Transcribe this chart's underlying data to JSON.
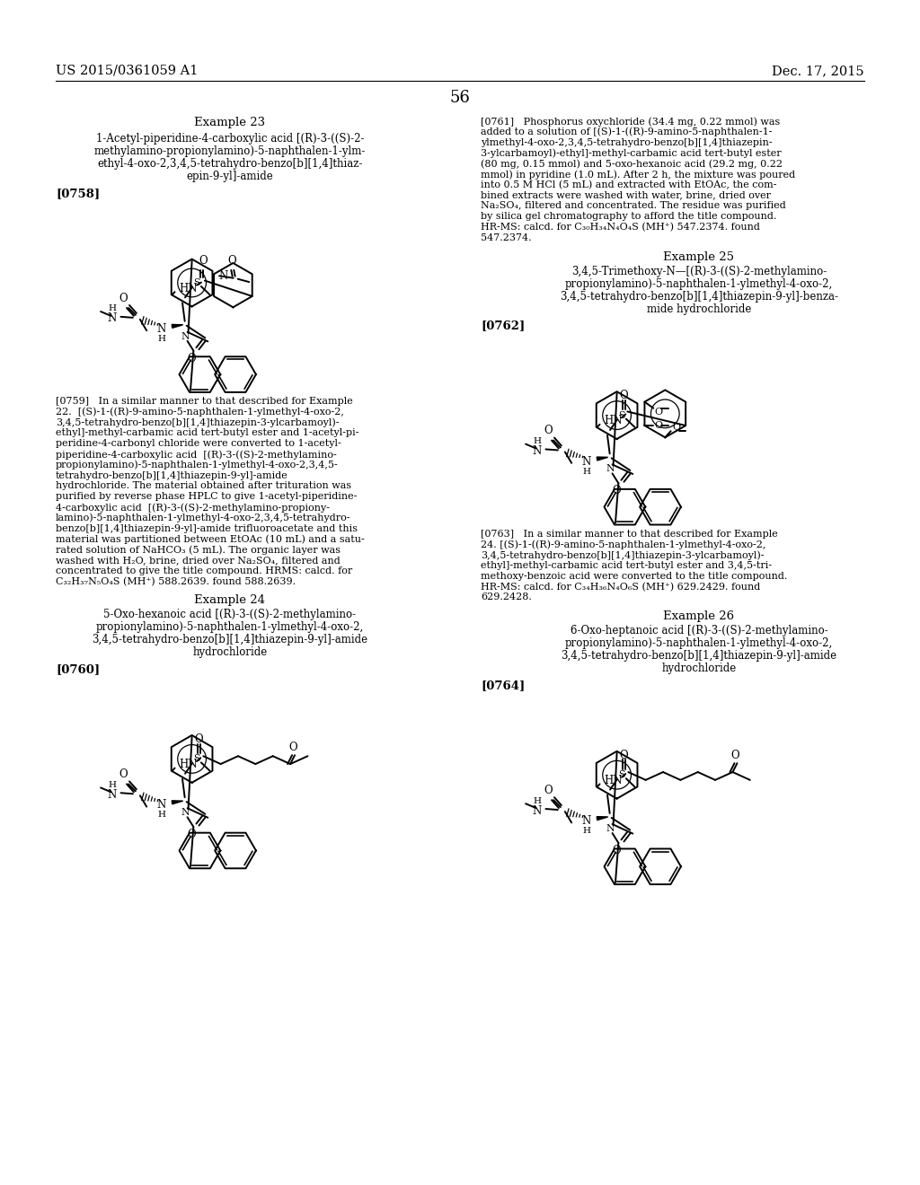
{
  "page_number": "56",
  "patent_number": "US 2015/0361059 A1",
  "patent_date": "Dec. 17, 2015",
  "background_color": "#ffffff",
  "text_color": "#000000",
  "font_size_header": 10.5,
  "font_size_body": 8.5,
  "font_size_title": 9.5,
  "font_size_label": 9.5,
  "example23_title": "Example 23",
  "example23_subtitle": "1-Acetyl-piperidine-4-carboxylic acid [(R)-3-((S)-2-\nmethylamino-propionylamino)-5-naphthalen-1-ylm-\nethyl-4-oxo-2,3,4,5-tetrahydro-benzo[b][1,4]thiaz-\nepin-9-yl]-amide",
  "example23_label": "[0758]",
  "example23_para": "[0759]   In a similar manner to that described for Example\n22.  [(S)-1-((R)-9-amino-5-naphthalen-1-ylmethyl-4-oxo-2,\n3,4,5-tetrahydro-benzo[b][1,4]thiazepin-3-ylcarbamoyl)-\nethyl]-methyl-carbamic acid tert-butyl ester and 1-acetyl-pi-\nperidine-4-carbonyl chloride were converted to 1-acetyl-\npiperidine-4-carboxylic acid  [(R)-3-((S)-2-methylamino-\npropionylamino)-5-naphthalen-1-ylmethyl-4-oxo-2,3,4,5-\ntetrahydro-benzo[b][1,4]thiazepin-9-yl]-amide\nhydrochloride. The material obtained after trituration was\npurified by reverse phase HPLC to give 1-acetyl-piperidine-\n4-carboxylic acid  [(R)-3-((S)-2-methylamino-propiony-\nlamino)-5-naphthalen-1-ylmethyl-4-oxo-2,3,4,5-tetrahydro-\nbenzo[b][1,4]thiazepin-9-yl]-amide trifluoroacetate and this\nmaterial was partitioned between EtOAc (10 mL) and a satu-\nrated solution of NaHCO₃ (5 mL). The organic layer was\nwashed with H₂O, brine, dried over Na₂SO₄, filtered and\nconcentrated to give the title compound. HRMS: calcd. for\nC₃₂H₃₇N₅O₄S (MH⁺) 588.2639. found 588.2639.",
  "example24_title": "Example 24",
  "example24_subtitle": "5-Oxo-hexanoic acid [(R)-3-((S)-2-methylamino-\npropionylamino)-5-naphthalen-1-ylmethyl-4-oxo-2,\n3,4,5-tetrahydro-benzo[b][1,4]thiazepin-9-yl]-amide\nhydrochloride",
  "example24_label": "[0760]",
  "example25_title": "Example 25",
  "example25_subtitle": "3,4,5-Trimethoxy-N—[(R)-3-((S)-2-methylamino-\npropionylamino)-5-naphthalen-1-ylmethyl-4-oxo-2,\n3,4,5-tetrahydro-benzo[b][1,4]thiazepin-9-yl]-benza-\nmide hydrochloride",
  "example25_label": "[0762]",
  "example25_para": "[0763]   In a similar manner to that described for Example\n24. [(S)-1-((R)-9-amino-5-naphthalen-1-ylmethyl-4-oxo-2,\n3,4,5-tetrahydro-benzo[b][1,4]thiazepin-3-ylcarbamoyl)-\nethyl]-methyl-carbamic acid tert-butyl ester and 3,4,5-tri-\nmethoxy-benzoic acid were converted to the title compound.\nHR-MS: calcd. for C₃₄H₃₆N₄O₆S (MH⁺) 629.2429. found\n629.2428.",
  "example25_para2": "[0761]   Phosphorus oxychloride (34.4 mg, 0.22 mmol) was\nadded to a solution of [(S)-1-((R)-9-amino-5-naphthalen-1-\nylmethyl-4-oxo-2,3,4,5-tetrahydro-benzo[b][1,4]thiazepin-\n3-ylcarbamoyl)-ethyl]-methyl-carbamic acid tert-butyl ester\n(80 mg, 0.15 mmol) and 5-oxo-hexanoic acid (29.2 mg, 0.22\nmmol) in pyridine (1.0 mL). After 2 h, the mixture was poured\ninto 0.5 M HCl (5 mL) and extracted with EtOAc, the com-\nbined extracts were washed with water, brine, dried over\nNa₂SO₄, filtered and concentrated. The residue was purified\nby silica gel chromatography to afford the title compound.\nHR-MS: calcd. for C₃₀H₃₄N₄O₄S (MH⁺) 547.2374. found\n547.2374.",
  "example26_title": "Example 26",
  "example26_subtitle": "6-Oxo-heptanoic acid [(R)-3-((S)-2-methylamino-\npropionylamino)-5-naphthalen-1-ylmethyl-4-oxo-2,\n3,4,5-tetrahydro-benzo[b][1,4]thiazepin-9-yl]-amide\nhydrochloride",
  "example26_label": "[0764]"
}
